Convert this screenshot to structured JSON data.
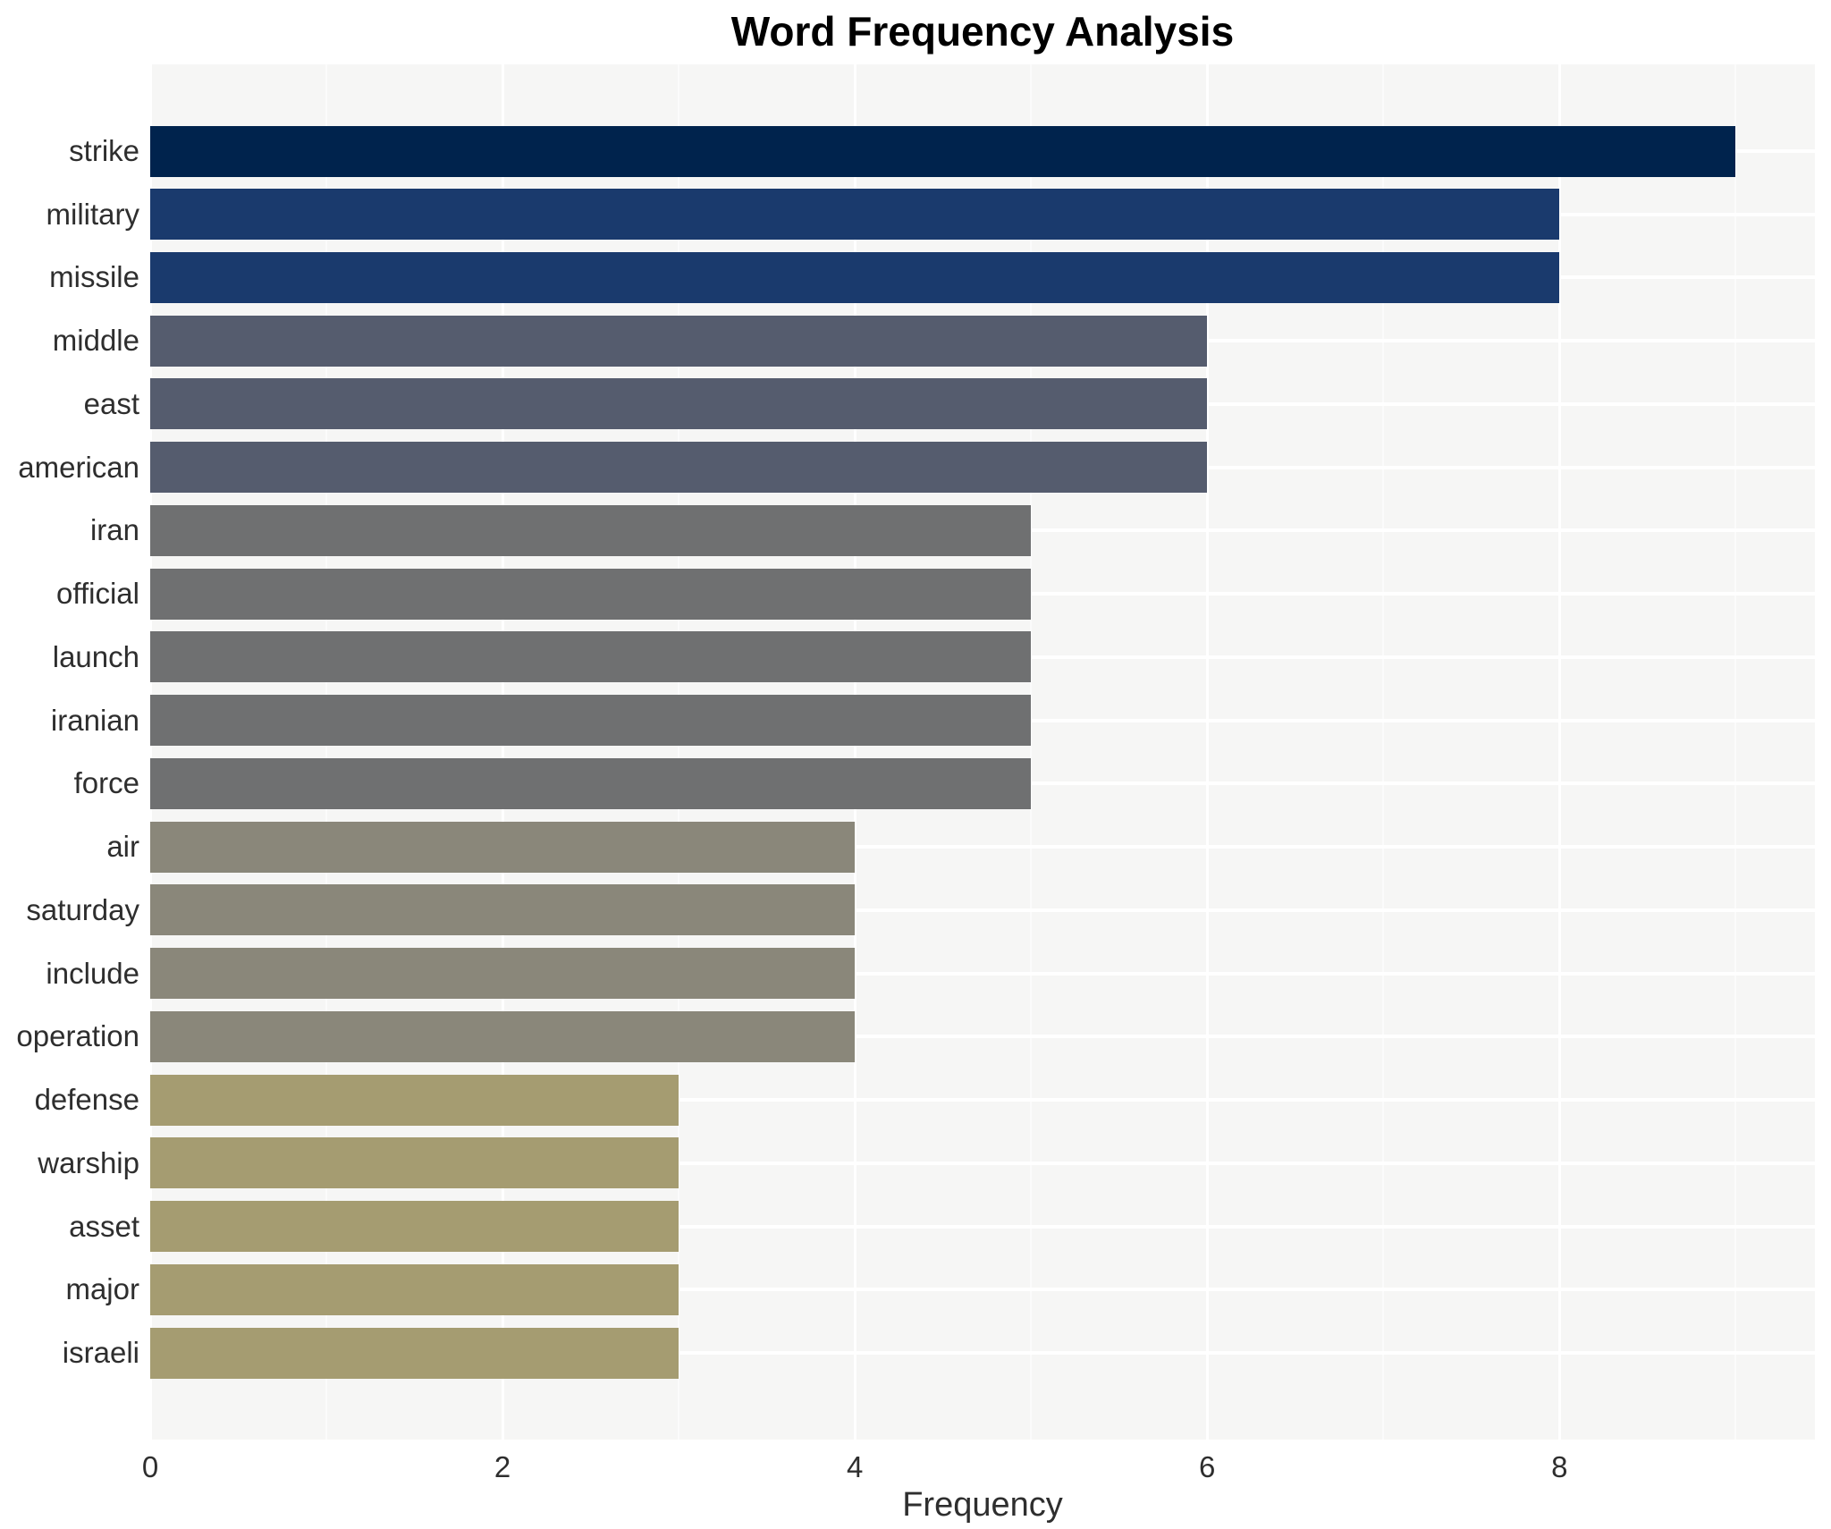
{
  "title": "Word Frequency Analysis",
  "chart_data": {
    "type": "bar",
    "orientation": "horizontal",
    "title": "Word Frequency Analysis",
    "xlabel": "Frequency",
    "ylabel": "",
    "categories": [
      "strike",
      "military",
      "missile",
      "middle",
      "east",
      "american",
      "iran",
      "official",
      "launch",
      "iranian",
      "force",
      "air",
      "saturday",
      "include",
      "operation",
      "defense",
      "warship",
      "asset",
      "major",
      "israeli"
    ],
    "values": [
      9,
      8,
      8,
      6,
      6,
      6,
      5,
      5,
      5,
      5,
      5,
      4,
      4,
      4,
      4,
      3,
      3,
      3,
      3,
      3
    ],
    "bar_colors": [
      "#00234d",
      "#1a3a6d",
      "#1a3a6d",
      "#555c6e",
      "#555c6e",
      "#555c6e",
      "#6f7071",
      "#6f7071",
      "#6f7071",
      "#6f7071",
      "#6f7071",
      "#8a877a",
      "#8a877a",
      "#8a877a",
      "#8a877a",
      "#a59c71",
      "#a59c71",
      "#a59c71",
      "#a59c71",
      "#a59c71"
    ],
    "xticks": [
      "0",
      "2",
      "4",
      "6",
      "8"
    ],
    "xtick_values": [
      0,
      2,
      4,
      6,
      8
    ],
    "xlim": [
      0,
      9.45
    ],
    "grid": true,
    "legend": "none",
    "panel_bg": "#f6f6f5",
    "grid_color": "#ffffff"
  }
}
